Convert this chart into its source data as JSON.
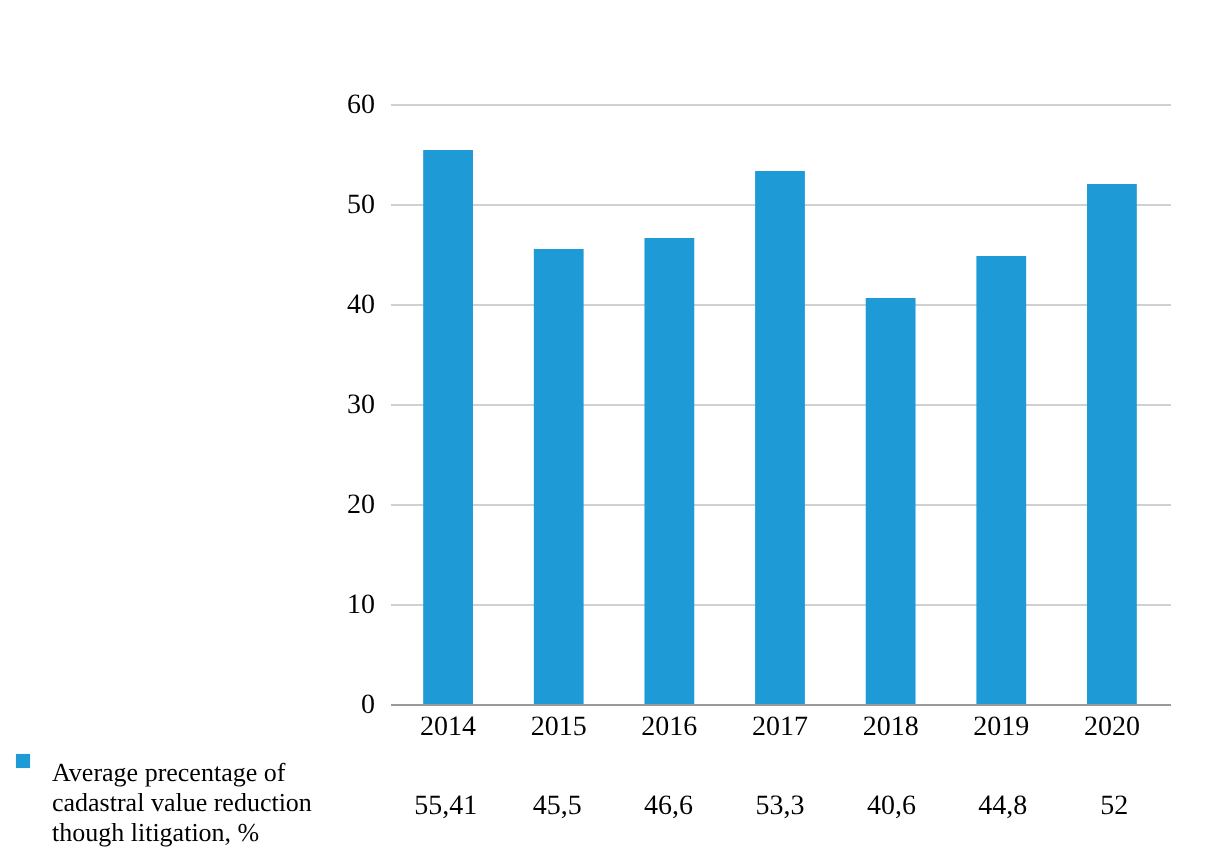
{
  "chart_data": {
    "type": "bar",
    "categories": [
      "2014",
      "2015",
      "2016",
      "2017",
      "2018",
      "2019",
      "2020"
    ],
    "series": [
      {
        "name": "Average precentage of cadastral value reduction though litigation, %",
        "color": "#1e9ad6",
        "values": [
          55.41,
          45.5,
          46.6,
          53.3,
          40.6,
          44.8,
          52
        ],
        "value_labels": [
          "55,41",
          "45,5",
          "46,6",
          "53,3",
          "40,6",
          "44,8",
          "52"
        ]
      }
    ],
    "ylim": [
      0,
      60
    ],
    "yticks": [
      0,
      10,
      20,
      30,
      40,
      50,
      60
    ],
    "grid": "y",
    "legend": "bottom left"
  }
}
